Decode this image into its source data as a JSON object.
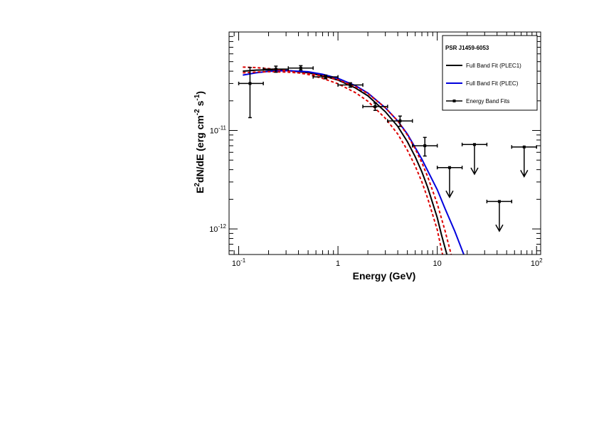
{
  "chart_data": {
    "type": "line",
    "title": "",
    "xlabel": "Energy (GeV)",
    "ylabel_parts": [
      "E",
      "2",
      "dN/dE (erg cm",
      "-2",
      " s",
      "-1",
      ")"
    ],
    "x_scale": "log",
    "y_scale": "log",
    "xlim": [
      0.08,
      110
    ],
    "ylim": [
      5.5e-13,
      1e-10
    ],
    "x_ticks": [
      {
        "value": 0.1,
        "base": "10",
        "exp": "-1"
      },
      {
        "value": 1,
        "text": "1"
      },
      {
        "value": 10,
        "text": "10"
      },
      {
        "value": 100,
        "base": "10",
        "exp": "2"
      }
    ],
    "y_ticks": [
      {
        "value": 1e-12,
        "base": "10",
        "exp": "-12"
      },
      {
        "value": 1e-11,
        "base": "10",
        "exp": "-11"
      }
    ],
    "grid": false,
    "legend": {
      "position": "top-right",
      "title": "PSR J1459-6053",
      "entries": [
        {
          "label": "Full Band Fit (PLEC1)",
          "color": "#000000",
          "kind": "line"
        },
        {
          "label": "Full Band Fit (PLEC)",
          "color": "#0000dd",
          "kind": "line"
        },
        {
          "label": "Energy Band Fits",
          "color": "#000000",
          "kind": "marker"
        }
      ]
    },
    "series": [
      {
        "name": "Full Band Fit (PLEC1)",
        "color": "#000000",
        "dash": "none",
        "x": [
          0.11,
          0.15,
          0.2,
          0.3,
          0.5,
          0.7,
          1,
          1.5,
          2,
          3,
          4,
          5,
          6,
          7,
          8,
          10,
          11,
          12.5
        ],
        "y": [
          4e-11,
          4.1e-11,
          4.13e-11,
          4.08e-11,
          3.85e-11,
          3.6e-11,
          3.25e-11,
          2.7e-11,
          2.25e-11,
          1.55e-11,
          1.1e-11,
          7.7e-12,
          5.4e-12,
          3.8e-12,
          2.65e-12,
          1.3e-12,
          8.8e-13,
          5.5e-13
        ]
      },
      {
        "name": "Full Band Fit (PLEC)",
        "color": "#0000dd",
        "dash": "none",
        "x": [
          0.11,
          0.15,
          0.2,
          0.3,
          0.5,
          0.7,
          1,
          1.5,
          2,
          3,
          4,
          5,
          7,
          10,
          12,
          15,
          18.5
        ],
        "y": [
          3.65e-11,
          3.85e-11,
          3.98e-11,
          4.05e-11,
          3.95e-11,
          3.72e-11,
          3.38e-11,
          2.85e-11,
          2.4e-11,
          1.7e-11,
          1.25e-11,
          9.2e-12,
          5.1e-12,
          2.5e-12,
          1.6e-12,
          9.5e-13,
          5.5e-13
        ]
      },
      {
        "name": "",
        "color": "#dd0000",
        "dash": "4,3",
        "x": [
          0.11,
          0.15,
          0.2,
          0.3,
          0.5,
          0.7,
          1,
          1.5,
          2,
          3,
          4,
          5,
          6,
          7,
          8,
          10,
          11.3
        ],
        "y": [
          4.4e-11,
          4.35e-11,
          4.25e-11,
          4.05e-11,
          3.7e-11,
          3.38e-11,
          2.98e-11,
          2.42e-11,
          1.98e-11,
          1.33e-11,
          9.2e-12,
          6.3e-12,
          4.35e-12,
          3e-12,
          2.05e-12,
          9.8e-13,
          5.5e-13
        ]
      },
      {
        "name": "",
        "color": "#dd0000",
        "dash": "4,3",
        "x": [
          0.11,
          0.15,
          0.2,
          0.3,
          0.5,
          0.7,
          1,
          1.5,
          2,
          3,
          4,
          5,
          6,
          7,
          8,
          10,
          12,
          13.8
        ],
        "y": [
          3.85e-11,
          3.92e-11,
          3.95e-11,
          3.92e-11,
          3.78e-11,
          3.58e-11,
          3.28e-11,
          2.78e-11,
          2.37e-11,
          1.7e-11,
          1.25e-11,
          9e-12,
          6.5e-12,
          4.7e-12,
          3.4e-12,
          1.8e-12,
          9.5e-13,
          5.5e-13
        ]
      }
    ],
    "band_points": [
      {
        "x": 0.13,
        "xlo": 0.1,
        "xhi": 0.177,
        "y": 3e-11,
        "ylo": 1.35e-11,
        "yhi": 4.35e-11,
        "upper_limit": false
      },
      {
        "x": 0.237,
        "xlo": 0.177,
        "xhi": 0.316,
        "y": 4.2e-11,
        "ylo": 3.9e-11,
        "yhi": 4.5e-11,
        "upper_limit": false
      },
      {
        "x": 0.422,
        "xlo": 0.316,
        "xhi": 0.562,
        "y": 4.3e-11,
        "ylo": 4.1e-11,
        "yhi": 4.55e-11,
        "upper_limit": false
      },
      {
        "x": 0.75,
        "xlo": 0.562,
        "xhi": 1.0,
        "y": 3.5e-11,
        "ylo": 3.35e-11,
        "yhi": 3.65e-11,
        "upper_limit": false
      },
      {
        "x": 1.33,
        "xlo": 1.0,
        "xhi": 1.78,
        "y": 2.9e-11,
        "ylo": 2.75e-11,
        "yhi": 3.05e-11,
        "upper_limit": false
      },
      {
        "x": 2.37,
        "xlo": 1.78,
        "xhi": 3.16,
        "y": 1.75e-11,
        "ylo": 1.6e-11,
        "yhi": 1.9e-11,
        "upper_limit": false
      },
      {
        "x": 4.22,
        "xlo": 3.16,
        "xhi": 5.62,
        "y": 1.25e-11,
        "ylo": 1.1e-11,
        "yhi": 1.4e-11,
        "upper_limit": false
      },
      {
        "x": 7.5,
        "xlo": 5.62,
        "xhi": 10.0,
        "y": 7e-12,
        "ylo": 5.5e-12,
        "yhi": 8.5e-12,
        "upper_limit": false
      },
      {
        "x": 13.3,
        "xlo": 10.0,
        "xhi": 17.8,
        "y": 4.2e-12,
        "ylo": 2.1e-12,
        "yhi": null,
        "upper_limit": true
      },
      {
        "x": 23.7,
        "xlo": 17.8,
        "xhi": 31.6,
        "y": 7.2e-12,
        "ylo": 3.6e-12,
        "yhi": null,
        "upper_limit": true
      },
      {
        "x": 42.2,
        "xlo": 31.6,
        "xhi": 56.2,
        "y": 1.9e-12,
        "ylo": 9.5e-13,
        "yhi": null,
        "upper_limit": true
      },
      {
        "x": 75.0,
        "xlo": 56.2,
        "xhi": 100.0,
        "y": 6.8e-12,
        "ylo": 3.4e-12,
        "yhi": null,
        "upper_limit": true
      }
    ]
  }
}
